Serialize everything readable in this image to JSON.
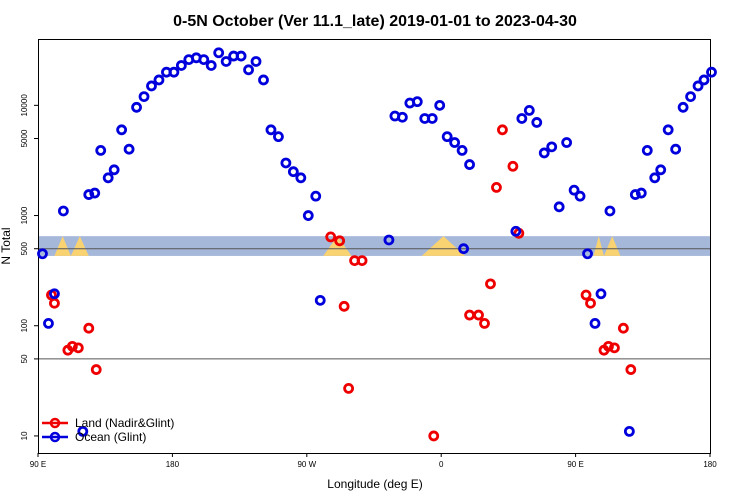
{
  "chart_data": {
    "type": "scatter",
    "title": "0-5N October (Ver 11.1_late)   2019-01-01 to 2023-04-30",
    "xlabel": "Longitude (deg E)",
    "ylabel": "N Total",
    "x_axis": {
      "range_deg_east": [
        90,
        450
      ],
      "ticks": [
        {
          "value": 90,
          "label": "90 E"
        },
        {
          "value": 180,
          "label": "180"
        },
        {
          "value": 270,
          "label": "90 W"
        },
        {
          "value": 360,
          "label": "0"
        },
        {
          "value": 450,
          "label": "90 E"
        },
        {
          "value": 540,
          "label": "180"
        }
      ],
      "range": [
        90,
        540
      ]
    },
    "y_axis": {
      "scale": "log",
      "range": [
        7,
        40000
      ],
      "ticks": [
        10,
        50,
        100,
        500,
        1000,
        5000,
        10000
      ],
      "reference_lines": [
        50,
        500
      ]
    },
    "land_band": {
      "description_color": "#f9d271",
      "ocean_band_color": "#a6b8d9"
    },
    "legend": {
      "placement": "bottom-left"
    },
    "series": [
      {
        "name": "Land (Nadir&Glint)",
        "color": "#ee0000",
        "points": [
          [
            99,
            190
          ],
          [
            101,
            160
          ],
          [
            110,
            60
          ],
          [
            113,
            65
          ],
          [
            117,
            63
          ],
          [
            124,
            95
          ],
          [
            129,
            40
          ],
          [
            286,
            640
          ],
          [
            292,
            590
          ],
          [
            298,
            27
          ],
          [
            302,
            390
          ],
          [
            307,
            390
          ],
          [
            295,
            150
          ],
          [
            355,
            10
          ],
          [
            379,
            125
          ],
          [
            385,
            125
          ],
          [
            389,
            105
          ],
          [
            393,
            240
          ],
          [
            397,
            1800
          ],
          [
            401,
            6000
          ],
          [
            408,
            2800
          ],
          [
            412,
            690
          ],
          [
            457,
            190
          ],
          [
            460,
            160
          ],
          [
            469,
            60
          ],
          [
            472,
            65
          ],
          [
            476,
            63
          ],
          [
            482,
            95
          ],
          [
            487,
            40
          ]
        ]
      },
      {
        "name": "Ocean (Glint)",
        "color": "#0000dd",
        "points": [
          [
            93,
            450
          ],
          [
            97,
            105
          ],
          [
            101,
            195
          ],
          [
            107,
            1100
          ],
          [
            120,
            11
          ],
          [
            124,
            1550
          ],
          [
            128,
            1600
          ],
          [
            132,
            3900
          ],
          [
            137,
            2200
          ],
          [
            141,
            2600
          ],
          [
            146,
            6000
          ],
          [
            151,
            4000
          ],
          [
            156,
            9600
          ],
          [
            161,
            12000
          ],
          [
            166,
            15000
          ],
          [
            171,
            17000
          ],
          [
            176,
            20000
          ],
          [
            181,
            20000
          ],
          [
            186,
            23000
          ],
          [
            191,
            26000
          ],
          [
            196,
            27000
          ],
          [
            201,
            26000
          ],
          [
            206,
            23000
          ],
          [
            211,
            30000
          ],
          [
            216,
            25000
          ],
          [
            221,
            28000
          ],
          [
            226,
            28000
          ],
          [
            231,
            21000
          ],
          [
            236,
            25000
          ],
          [
            241,
            17000
          ],
          [
            246,
            6000
          ],
          [
            251,
            5200
          ],
          [
            256,
            3000
          ],
          [
            261,
            2500
          ],
          [
            266,
            2200
          ],
          [
            271,
            1000
          ],
          [
            276,
            1500
          ],
          [
            279,
            170
          ],
          [
            325,
            600
          ],
          [
            329,
            8000
          ],
          [
            334,
            7800
          ],
          [
            339,
            10500
          ],
          [
            344,
            10800
          ],
          [
            349,
            7600
          ],
          [
            354,
            7600
          ],
          [
            359,
            10000
          ],
          [
            364,
            5200
          ],
          [
            369,
            4600
          ],
          [
            374,
            3900
          ],
          [
            379,
            2900
          ],
          [
            375,
            500
          ],
          [
            410,
            720
          ],
          [
            414,
            7600
          ],
          [
            419,
            9000
          ],
          [
            424,
            7000
          ],
          [
            429,
            3700
          ],
          [
            434,
            4200
          ],
          [
            439,
            1200
          ],
          [
            444,
            4600
          ],
          [
            449,
            1700
          ],
          [
            453,
            1500
          ],
          [
            458,
            450
          ],
          [
            463,
            105
          ],
          [
            467,
            195
          ],
          [
            473,
            1100
          ],
          [
            486,
            11
          ],
          [
            490,
            1550
          ],
          [
            494,
            1600
          ],
          [
            498,
            3900
          ],
          [
            503,
            2200
          ],
          [
            507,
            2600
          ],
          [
            512,
            6000
          ],
          [
            517,
            4000
          ],
          [
            522,
            9600
          ],
          [
            527,
            12000
          ],
          [
            532,
            15000
          ],
          [
            536,
            17000
          ],
          [
            541,
            20000
          ]
        ]
      }
    ]
  }
}
